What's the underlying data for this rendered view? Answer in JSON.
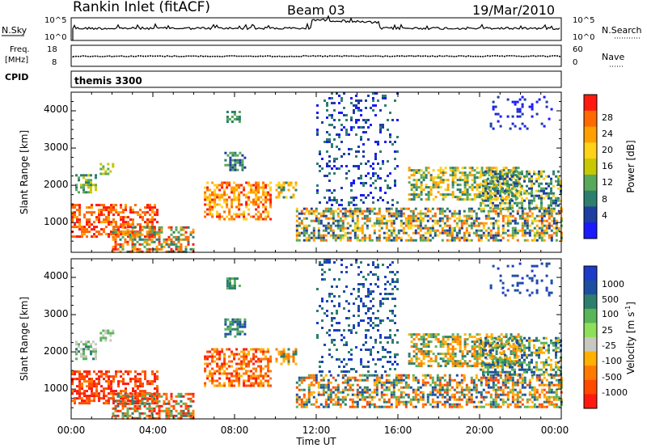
{
  "header": {
    "station": "Rankin Inlet (fitACF)",
    "beam": "Beam 03",
    "date": "19/Mar/2010"
  },
  "sky_panel": {
    "left_label": "N.Sky",
    "left_ticks": [
      "10^5",
      "10^0"
    ],
    "right_label": "N.Search",
    "right_ticks": [
      "10^5",
      "10^0"
    ],
    "line_color": "#000000"
  },
  "freq_panel": {
    "left_label_1": "Freq.",
    "left_label_2": "[MHz]",
    "left_ticks": [
      "18",
      "8"
    ],
    "right_label": "Nave",
    "right_ticks": [
      "60",
      "0"
    ]
  },
  "cpid_panel": {
    "label": "CPID",
    "value": "themis 3300"
  },
  "colorbars": {
    "power": {
      "label": "Power [dB]",
      "ticks": [
        "28",
        "24",
        "20",
        "16",
        "12",
        "8",
        "4"
      ],
      "colors": [
        "#ff1a0f",
        "#ff6a00",
        "#ffa000",
        "#ffd21a",
        "#c8c800",
        "#5aa85a",
        "#2e7e6e",
        "#1e3ea0",
        "#1a1aff"
      ]
    },
    "velocity": {
      "label": "Velocity [m s",
      "label_sup": "-1",
      "label_end": "]",
      "ticks": [
        "1000",
        "500",
        "100",
        "25",
        "-25",
        "-100",
        "-500",
        "-1000"
      ],
      "colors": [
        "#1a3cc8",
        "#1e4ea0",
        "#2e7e6e",
        "#5ab45a",
        "#8ee05a",
        "#c8c8c0",
        "#ffb000",
        "#ff7a00",
        "#ff4a00",
        "#ff1a0f"
      ]
    }
  },
  "chart_data": [
    {
      "type": "heatmap",
      "title": "Power",
      "xlabel": "Time UT",
      "ylabel": "Slant Range [km]",
      "xticks": [
        "00:00",
        "04:00",
        "08:00",
        "12:00",
        "16:00",
        "20:00",
        "00:00"
      ],
      "yticks": [
        "1000",
        "2000",
        "3000",
        "4000"
      ],
      "xlim": [
        0,
        24
      ],
      "ylim": [
        200,
        4500
      ],
      "cbar_label": "Power [dB]",
      "cbar_ticks": [
        28,
        24,
        20,
        16,
        12,
        8,
        4
      ]
    },
    {
      "type": "heatmap",
      "title": "Velocity",
      "xlabel": "Time UT",
      "ylabel": "Slant Range [km]",
      "xticks": [
        "00:00",
        "04:00",
        "08:00",
        "12:00",
        "16:00",
        "20:00",
        "00:00"
      ],
      "yticks": [
        "1000",
        "2000",
        "3000",
        "4000"
      ],
      "xlim": [
        0,
        24
      ],
      "ylim": [
        200,
        4500
      ],
      "cbar_label": "Velocity [m s-1]",
      "cbar_ticks": [
        1000,
        500,
        100,
        25,
        -25,
        -100,
        -500,
        -1000
      ]
    }
  ]
}
